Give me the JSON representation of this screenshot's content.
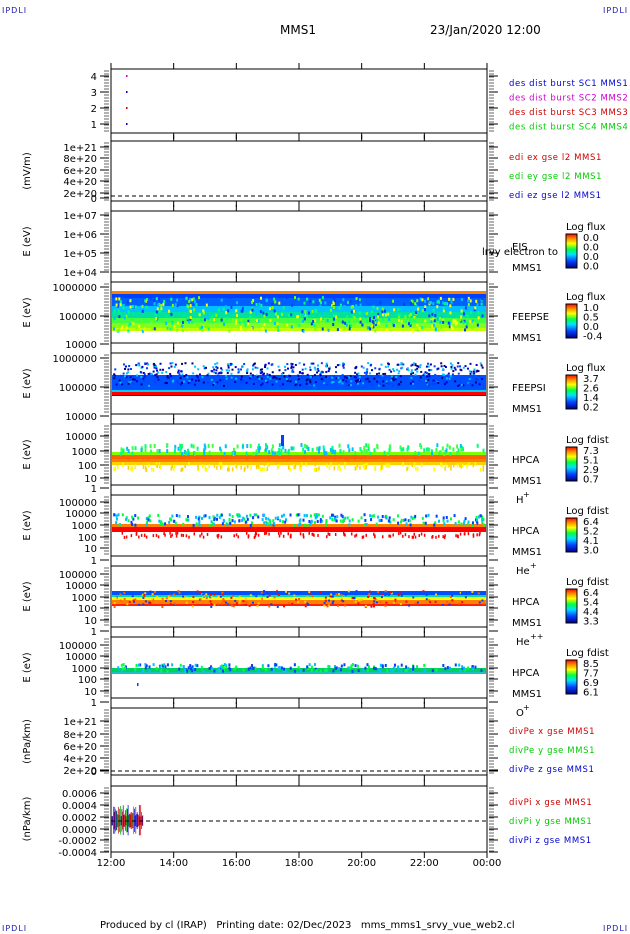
{
  "corners": {
    "label": "IPDLI"
  },
  "header": {
    "spacecraft": "MMS1",
    "datetime": "23/Jan/2020 12:00"
  },
  "footer": {
    "text": "Produced by cl (IRAP)   Printing date: 02/Dec/2023   mms_mms1_srvy_vue_web2.cl"
  },
  "x_axis": {
    "ticks": [
      "12:00",
      "14:00",
      "16:00",
      "18:00",
      "20:00",
      "22:00",
      "00:00"
    ]
  },
  "panels": {
    "burst": {
      "yticks": [
        "4",
        "3",
        "2",
        "1"
      ],
      "legend": [
        {
          "text": "des dist burst SC1 MMS1",
          "color": "#0000cc"
        },
        {
          "text": "des dist burst SC2 MMS2",
          "color": "#cc00cc"
        },
        {
          "text": "des dist burst SC3 MMS3",
          "color": "#cc0000"
        },
        {
          "text": "des dist burst SC4 MMS4",
          "color": "#00cc00"
        }
      ]
    },
    "edi": {
      "ylabel": "(mV/m)",
      "yticks": [
        "1e+21",
        "8e+20",
        "6e+20",
        "4e+20",
        "2e+20",
        "0"
      ],
      "legend": [
        {
          "text": "edi ex gse l2 MMS1",
          "color": "#cc0000"
        },
        {
          "text": "edi ey gse l2 MMS1",
          "color": "#00cc00"
        },
        {
          "text": "edi ez gse l2 MMS1",
          "color": "#0000cc"
        }
      ]
    },
    "eis": {
      "ylabel": "E (eV)",
      "yticks": [
        "1e+07",
        "1e+06",
        "1e+05",
        "1e+04"
      ],
      "instrument": "EIS",
      "extra": "lrvy electron to",
      "spacecraft": "MMS1",
      "cb_title": "Log flux",
      "cb_values": [
        "0.0",
        "0.0",
        "0.0",
        "0.0"
      ]
    },
    "feeps_e": {
      "ylabel": "E (eV)",
      "yticks": [
        "1000000",
        "100000",
        "10000"
      ],
      "instrument": "FEEPSE",
      "spacecraft": "MMS1",
      "cb_title": "Log flux",
      "cb_values": [
        "1.0",
        "0.5",
        "0.0",
        "-0.4"
      ]
    },
    "feeps_i": {
      "ylabel": "E (eV)",
      "yticks": [
        "1000000",
        "100000",
        "10000"
      ],
      "instrument": "FEEPSI",
      "spacecraft": "MMS1",
      "cb_title": "Log flux",
      "cb_values": [
        "3.7",
        "2.6",
        "1.4",
        "0.2"
      ]
    },
    "hpca_h": {
      "ylabel": "E (eV)",
      "yticks": [
        "10000",
        "1000",
        "100",
        "10",
        "1"
      ],
      "instrument": "HPCA",
      "spacecraft": "MMS1",
      "species": "H",
      "species_sup": "+",
      "cb_title": "Log fdist",
      "cb_values": [
        "7.3",
        "5.1",
        "2.9",
        "0.7"
      ]
    },
    "hpca_he": {
      "ylabel": "E (eV)",
      "yticks": [
        "100000",
        "10000",
        "1000",
        "100",
        "10",
        "1"
      ],
      "instrument": "HPCA",
      "spacecraft": "MMS1",
      "species": "He",
      "species_sup": "+",
      "cb_title": "Log fdist",
      "cb_values": [
        "6.4",
        "5.2",
        "4.1",
        "3.0"
      ]
    },
    "hpca_hepp": {
      "ylabel": "E (eV)",
      "yticks": [
        "100000",
        "10000",
        "1000",
        "100",
        "10",
        "1"
      ],
      "instrument": "HPCA",
      "spacecraft": "MMS1",
      "species": "He",
      "species_sup": "++",
      "cb_title": "Log fdist",
      "cb_values": [
        "6.4",
        "5.4",
        "4.4",
        "3.3"
      ]
    },
    "hpca_o": {
      "ylabel": "E (eV)",
      "yticks": [
        "100000",
        "10000",
        "1000",
        "100",
        "10",
        "1"
      ],
      "instrument": "HPCA",
      "spacecraft": "MMS1",
      "species": "O",
      "species_sup": "+",
      "cb_title": "Log fdist",
      "cb_values": [
        "8.5",
        "7.7",
        "6.9",
        "6.1"
      ]
    },
    "divpe": {
      "ylabel": "(nPa/km)",
      "yticks": [
        "1e+21",
        "8e+20",
        "6e+20",
        "4e+20",
        "2e+20",
        "0"
      ],
      "legend": [
        {
          "text": "divPe x gse MMS1",
          "color": "#cc0000"
        },
        {
          "text": "divPe y gse MMS1",
          "color": "#00cc00"
        },
        {
          "text": "divPe z gse MMS1",
          "color": "#0000cc"
        }
      ]
    },
    "divpi": {
      "ylabel": "(nPa/km)",
      "yticks": [
        "0.0006",
        "0.0004",
        "0.0002",
        "0.0000",
        "-0.0002",
        "-0.0004"
      ],
      "legend": [
        {
          "text": "divPi x gse MMS1",
          "color": "#cc0000"
        },
        {
          "text": "divPi y gse MMS1",
          "color": "#00cc00"
        },
        {
          "text": "divPi z gse MMS1",
          "color": "#0000cc"
        }
      ]
    }
  },
  "chart_data": [
    {
      "type": "scatter",
      "name": "burst",
      "x": [
        "12:30",
        "12:30",
        "12:30",
        "12:30"
      ],
      "y": [
        4,
        3,
        2,
        1
      ]
    },
    {
      "type": "line",
      "name": "edi",
      "ylim": [
        0,
        1e+21
      ],
      "values": [
        0
      ]
    },
    {
      "type": "heatmap",
      "name": "eis",
      "ylim": [
        10000.0,
        10000000.0
      ],
      "log_y": true
    },
    {
      "type": "heatmap",
      "name": "feeps_e",
      "ylim": [
        10000.0,
        1000000.0
      ],
      "log_y": true
    },
    {
      "type": "heatmap",
      "name": "feeps_i",
      "ylim": [
        10000.0,
        1000000.0
      ],
      "log_y": true
    },
    {
      "type": "heatmap",
      "name": "hpca_h",
      "ylim": [
        1,
        10000.0
      ],
      "log_y": true
    },
    {
      "type": "heatmap",
      "name": "hpca_he",
      "ylim": [
        1,
        100000.0
      ],
      "log_y": true
    },
    {
      "type": "heatmap",
      "name": "hpca_hepp",
      "ylim": [
        1,
        100000.0
      ],
      "log_y": true
    },
    {
      "type": "heatmap",
      "name": "hpca_o",
      "ylim": [
        1,
        100000.0
      ],
      "log_y": true
    },
    {
      "type": "line",
      "name": "divpe",
      "ylim": [
        0,
        1e+21
      ],
      "values": [
        0
      ]
    },
    {
      "type": "line",
      "name": "divpi",
      "ylim": [
        -0.0005,
        0.0007
      ],
      "x": [
        "12:00",
        "13:00"
      ],
      "values": [
        0.0,
        0.0
      ]
    }
  ]
}
